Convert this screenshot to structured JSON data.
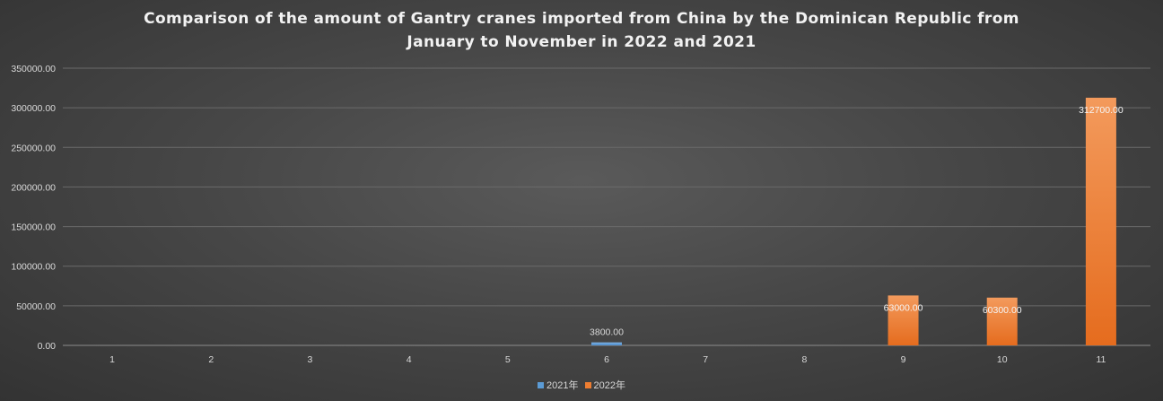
{
  "chart_data": {
    "type": "bar",
    "title_lines": [
      "Comparison of the amount of Gantry cranes imported from China by the Dominican Republic from",
      "January to November in 2022 and 2021"
    ],
    "categories": [
      "1",
      "2",
      "3",
      "4",
      "5",
      "6",
      "7",
      "8",
      "9",
      "10",
      "11"
    ],
    "series": [
      {
        "name": "2021年",
        "color": "#5b9bd5",
        "values": [
          null,
          null,
          null,
          null,
          null,
          3800,
          null,
          null,
          null,
          null,
          null
        ]
      },
      {
        "name": "2022年",
        "color": "#ed7d31",
        "values": [
          null,
          null,
          null,
          null,
          null,
          null,
          null,
          null,
          63000,
          60300,
          312700
        ]
      }
    ],
    "ylim": [
      0,
      350000
    ],
    "yticks": [
      0,
      50000,
      100000,
      150000,
      200000,
      250000,
      300000,
      350000
    ],
    "grid": true,
    "legend_position": "bottom",
    "data_labels": true
  }
}
